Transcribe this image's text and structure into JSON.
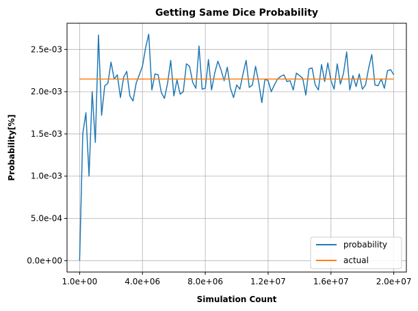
{
  "chart_data": {
    "type": "line",
    "title": "Getting Same Dice Probability",
    "xlabel": "Simulation Count",
    "ylabel": "Probability[%]",
    "xlim": [
      -800000,
      20800000
    ],
    "ylim": [
      -0.000135,
      0.00281
    ],
    "grid": true,
    "legend_position": "lower-right",
    "xticks": [
      {
        "value": 1,
        "label": "1.0e+00"
      },
      {
        "value": 4000000,
        "label": "4.0e+06"
      },
      {
        "value": 8000000,
        "label": "8.0e+06"
      },
      {
        "value": 12000000,
        "label": "1.2e+07"
      },
      {
        "value": 16000000,
        "label": "1.6e+07"
      },
      {
        "value": 20000000,
        "label": "2.0e+07"
      }
    ],
    "yticks": [
      {
        "value": 0,
        "label": "0.0e+00"
      },
      {
        "value": 0.0005,
        "label": "5.0e-04"
      },
      {
        "value": 0.001,
        "label": "1.0e-03"
      },
      {
        "value": 0.0015,
        "label": "1.5e-03"
      },
      {
        "value": 0.002,
        "label": "2.0e-03"
      },
      {
        "value": 0.0025,
        "label": "2.5e-03"
      }
    ],
    "series": [
      {
        "name": "probability",
        "color": "#1f77b4",
        "x_start": 1,
        "x_step": 200000,
        "values": [
          0.0,
          0.0015,
          0.00175,
          0.001,
          0.002,
          0.0014,
          0.00267,
          0.00172,
          0.00207,
          0.0021,
          0.00235,
          0.00215,
          0.0022,
          0.00193,
          0.00217,
          0.00224,
          0.00195,
          0.00189,
          0.0021,
          0.0022,
          0.0023,
          0.00252,
          0.00268,
          0.00202,
          0.00221,
          0.0022,
          0.00199,
          0.00192,
          0.0021,
          0.00237,
          0.00195,
          0.00214,
          0.00197,
          0.002,
          0.00233,
          0.0023,
          0.00211,
          0.00204,
          0.00254,
          0.00203,
          0.00204,
          0.00238,
          0.00202,
          0.00222,
          0.00236,
          0.00226,
          0.00213,
          0.00229,
          0.00204,
          0.00193,
          0.00208,
          0.00203,
          0.00221,
          0.00237,
          0.00205,
          0.00208,
          0.0023,
          0.00211,
          0.00187,
          0.00215,
          0.00213,
          0.002,
          0.00208,
          0.00215,
          0.00218,
          0.0022,
          0.00212,
          0.00213,
          0.00202,
          0.00222,
          0.00219,
          0.00216,
          0.00196,
          0.00227,
          0.00228,
          0.00208,
          0.00202,
          0.00232,
          0.00212,
          0.00234,
          0.00213,
          0.00203,
          0.00233,
          0.00209,
          0.00222,
          0.00247,
          0.00202,
          0.00219,
          0.00206,
          0.00221,
          0.00203,
          0.00208,
          0.00228,
          0.00244,
          0.00208,
          0.00207,
          0.00215,
          0.00204,
          0.00225,
          0.00226,
          0.0022
        ]
      },
      {
        "name": "actual",
        "color": "#ff7f0e",
        "x": [
          1,
          20000000
        ],
        "values": [
          0.00215,
          0.00215
        ]
      }
    ]
  }
}
